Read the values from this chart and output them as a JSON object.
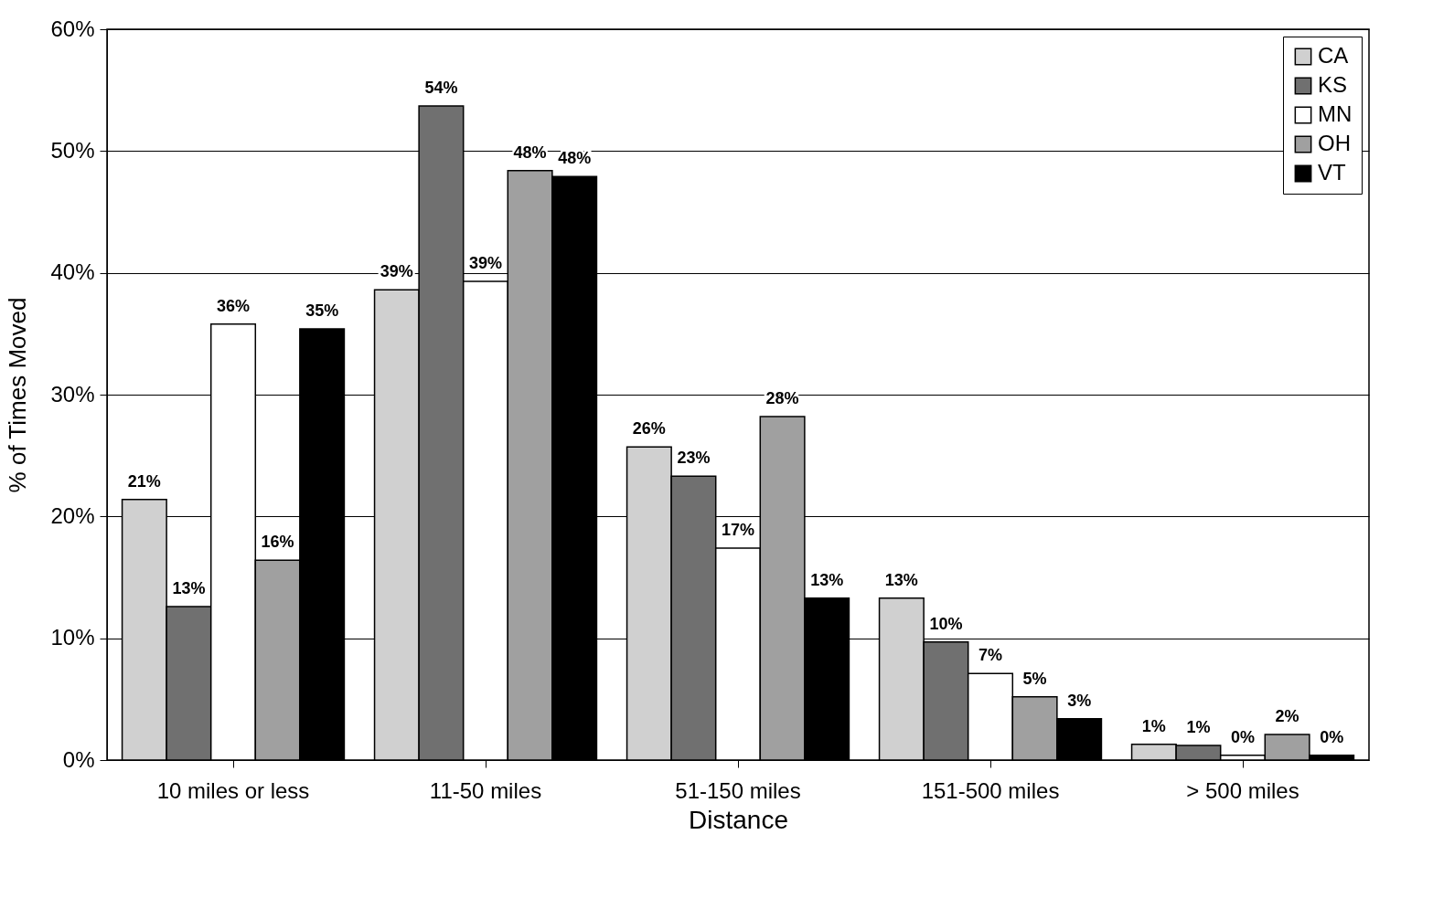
{
  "chart_data": {
    "type": "bar",
    "xlabel": "Distance",
    "ylabel": "% of Times Moved",
    "categories": [
      "10 miles or less",
      "11-50 miles",
      "51-150 miles",
      "151-500 miles",
      "> 500 miles"
    ],
    "series": [
      {
        "name": "CA",
        "color": "#d0d0d0",
        "values": [
          21.4,
          38.6,
          25.7,
          13.3,
          1.3
        ],
        "value_labels": [
          "21%",
          "39%",
          "26%",
          "13%",
          "1%"
        ]
      },
      {
        "name": "KS",
        "color": "#707070",
        "values": [
          12.6,
          53.7,
          23.3,
          9.7,
          1.2
        ],
        "value_labels": [
          "13%",
          "54%",
          "23%",
          "10%",
          "1%"
        ]
      },
      {
        "name": "MN",
        "color": "#ffffff",
        "values": [
          35.8,
          39.3,
          17.4,
          7.1,
          0.4
        ],
        "value_labels": [
          "36%",
          "39%",
          "17%",
          "7%",
          "0%"
        ]
      },
      {
        "name": "OH",
        "color": "#a0a0a0",
        "values": [
          16.4,
          48.4,
          28.2,
          5.2,
          2.1
        ],
        "value_labels": [
          "16%",
          "48%",
          "28%",
          "5%",
          "2%"
        ]
      },
      {
        "name": "VT",
        "color": "#000000",
        "values": [
          35.4,
          47.9,
          13.3,
          3.4,
          0.4
        ],
        "value_labels": [
          "35%",
          "48%",
          "13%",
          "3%",
          "0%"
        ]
      }
    ],
    "ylim": [
      0,
      60
    ],
    "yticks": [
      {
        "value": 0,
        "label": "0%"
      },
      {
        "value": 10,
        "label": "10%"
      },
      {
        "value": 20,
        "label": "20%"
      },
      {
        "value": 30,
        "label": "30%"
      },
      {
        "value": 40,
        "label": "40%"
      },
      {
        "value": 50,
        "label": "50%"
      },
      {
        "value": 60,
        "label": "60%"
      }
    ],
    "grid": "y",
    "legend": "top right"
  }
}
